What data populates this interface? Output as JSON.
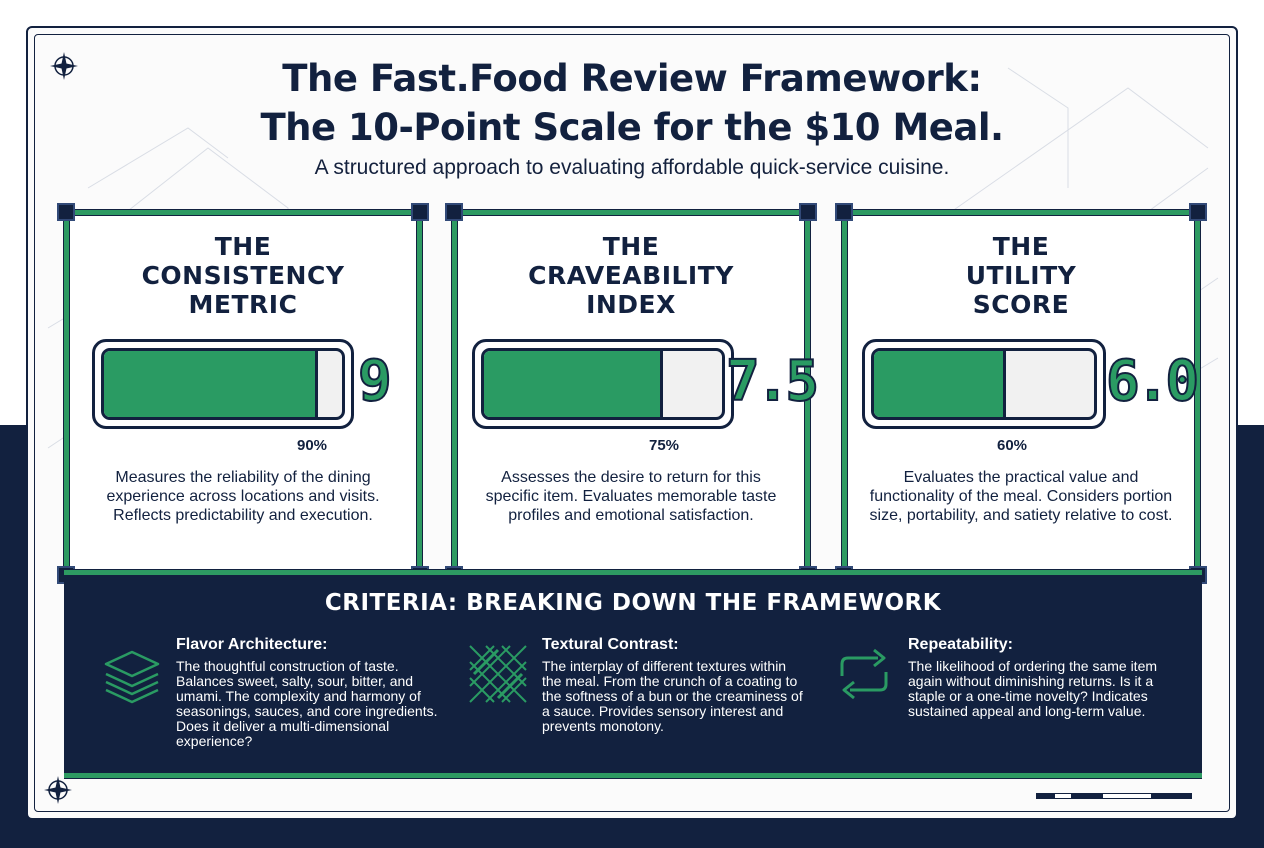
{
  "header": {
    "title_line1": "The Fast.Food Review Framework:",
    "title_line2": "The 10-Point Scale for the $10 Meal.",
    "subtitle": "A structured approach to evaluating affordable quick-service cuisine."
  },
  "colors": {
    "navy": "#12213f",
    "accent_green": "#2a9b63",
    "paper": "#fbfbfb"
  },
  "metrics": [
    {
      "title_lines": [
        "THE",
        "CONSISTENCY",
        "METRIC"
      ],
      "score": "9",
      "fill_fraction": 0.9,
      "percent_label": "90%",
      "description": "Measures the reliability of the dining experience across locations and visits. Reflects predictability and execution."
    },
    {
      "title_lines": [
        "THE",
        "CRAVEABILITY",
        "INDEX"
      ],
      "score": "7.5",
      "fill_fraction": 0.75,
      "percent_label": "75%",
      "description": "Assesses the desire to return for this specific item. Evaluates memorable taste profiles and emotional satisfaction."
    },
    {
      "title_lines": [
        "THE",
        "UTILITY",
        "SCORE"
      ],
      "score": "6.0",
      "fill_fraction": 0.6,
      "percent_label": "60%",
      "description": "Evaluates the practical value and functionality of the meal. Considers portion size, portability, and satiety relative to cost."
    }
  ],
  "criteria": {
    "title": "CRITERIA: BREAKING DOWN THE FRAMEWORK",
    "items": [
      {
        "heading": "Flavor Architecture:",
        "icon": "layers-icon",
        "body": "The thoughtful construction of taste. Balances sweet, salty, sour, bitter, and umami. The complexity and harmony of seasonings, sauces, and core ingredients. Does it deliver a multi-dimensional experience?"
      },
      {
        "heading": "Textural Contrast:",
        "icon": "crosshatch-texture-icon",
        "body": "The interplay of different textures within the meal. From the crunch of a coating to the softness of a bun or the creaminess of a sauce. Provides sensory interest and prevents monotony."
      },
      {
        "heading": "Repeatability:",
        "icon": "repeat-arrows-icon",
        "body": "The likelihood of ordering the same item again without diminishing returns. Is it a staple or a one-time novelty? Indicates sustained appeal and long-term value."
      }
    ]
  }
}
